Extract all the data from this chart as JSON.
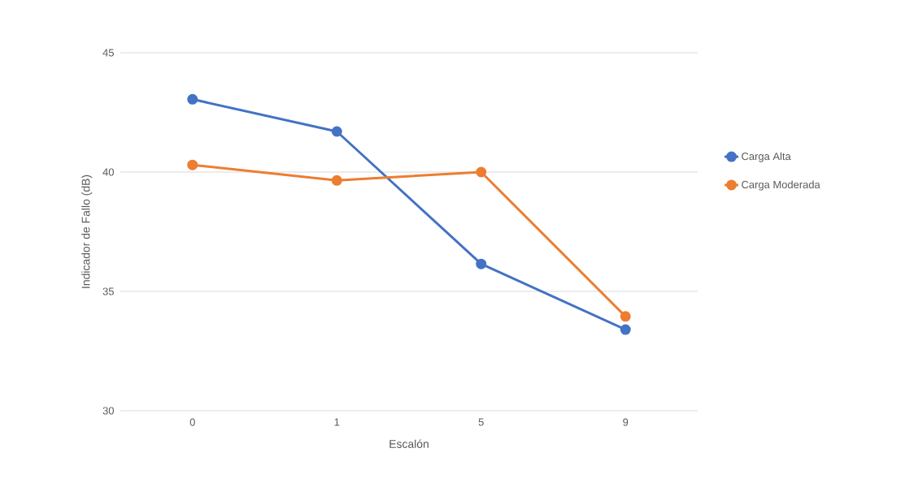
{
  "chart_data": {
    "type": "line",
    "xlabel": "Escalón",
    "ylabel": "Indicador de Fallo (dB)",
    "categories": [
      "0",
      "1",
      "5",
      "9"
    ],
    "series": [
      {
        "name": "Carga Alta",
        "color": "#4472c4",
        "values": [
          43.05,
          41.7,
          36.15,
          33.4
        ]
      },
      {
        "name": "Carga Moderada",
        "color": "#ed7d31",
        "values": [
          40.3,
          39.65,
          40.0,
          33.95
        ]
      }
    ],
    "ylim": [
      30,
      45
    ],
    "yticks": [
      30,
      35,
      40,
      45
    ],
    "grid": "y",
    "legend": "right",
    "marker": "circle",
    "line_style": "solid"
  }
}
